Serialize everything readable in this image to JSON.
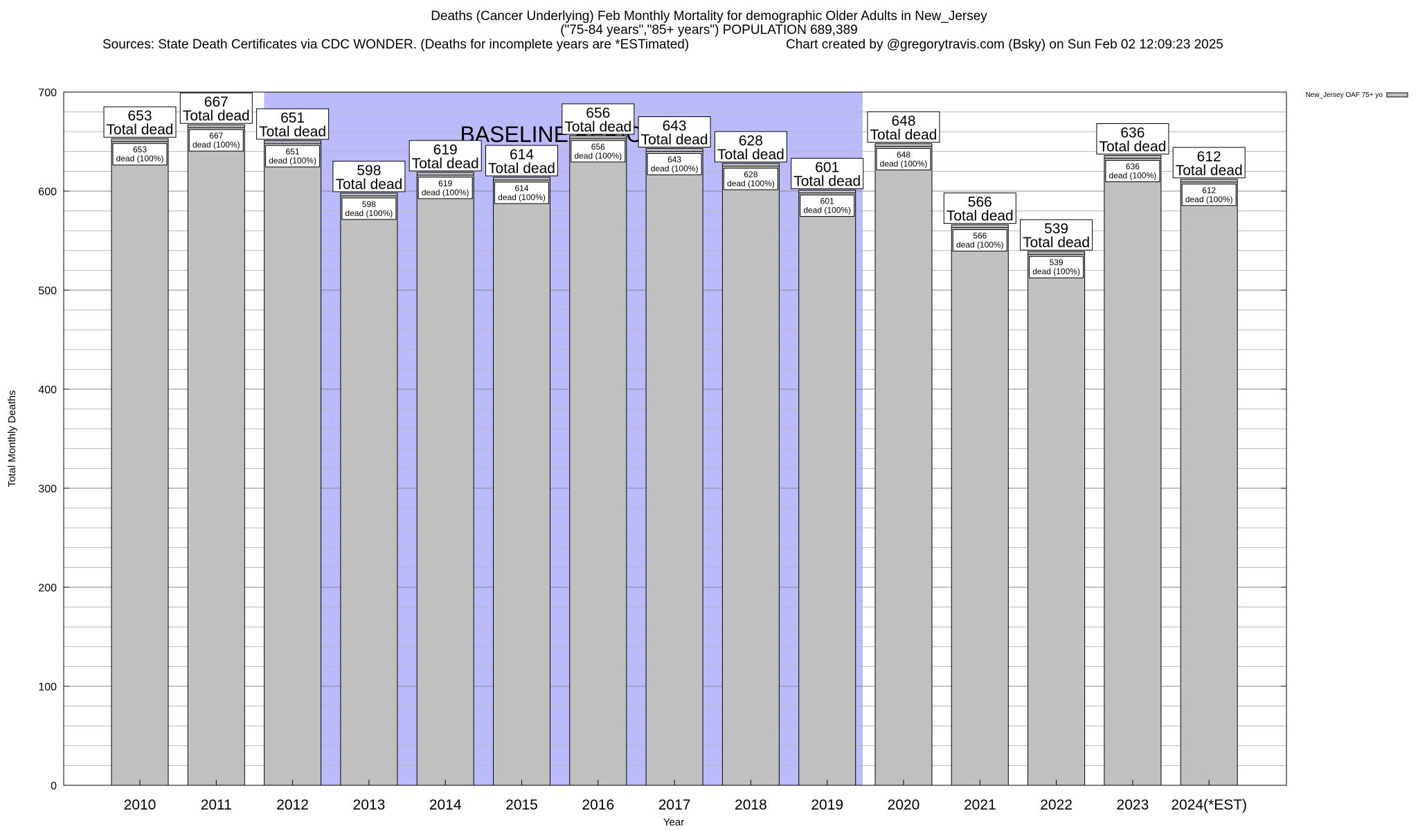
{
  "header": {
    "title": "Deaths (Cancer Underlying) Feb Monthly Mortality for demographic Older Adults in New_Jersey",
    "subtitle": "(\"75-84 years\",\"85+ years\") POPULATION 689,389",
    "sources": "Sources: State Death Certificates via CDC WONDER. (Deaths for incomplete years are *ESTimated)",
    "credit": "Chart created by @gregorytravis.com (Bsky) on Sun Feb 02 12:09:23 2025"
  },
  "colors": {
    "bar_fill": "#c0c0c0",
    "baseline_band": "#babafd",
    "grid": "#b8b8b8"
  },
  "chart_data": {
    "type": "bar",
    "title": "Deaths (Cancer Underlying) Feb Monthly Mortality for demographic Older Adults in New_Jersey",
    "xlabel": "Year",
    "ylabel": "Total Monthly Deaths",
    "ylim": [
      0,
      700
    ],
    "yticks": [
      0,
      100,
      200,
      300,
      400,
      500,
      600,
      700
    ],
    "grid": true,
    "legend_position": "top-right",
    "categories": [
      "2010",
      "2011",
      "2012",
      "2013",
      "2014",
      "2015",
      "2016",
      "2017",
      "2018",
      "2019",
      "2020",
      "2021",
      "2022",
      "2023",
      "2024(*EST)"
    ],
    "series": [
      {
        "name": "New_Jersey OAF 75+ yo",
        "values": [
          653,
          667,
          651,
          598,
          619,
          614,
          656,
          643,
          628,
          601,
          648,
          566,
          539,
          636,
          612
        ]
      }
    ],
    "total_label": "Total dead",
    "inner_label_suffix": "dead (100%)",
    "baseline": {
      "label": "BASELINE PERIOD",
      "start": "2012",
      "end": "2019"
    }
  }
}
